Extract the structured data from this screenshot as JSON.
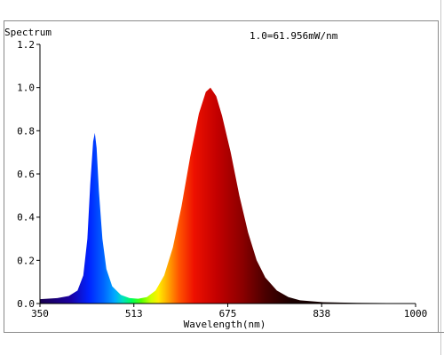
{
  "chart_data": {
    "type": "area",
    "title": "Spectrum",
    "annotation": "1.0=61.956mW/nm",
    "xlabel": "Wavelength(nm)",
    "ylabel": "",
    "xlim": [
      350,
      1000
    ],
    "ylim": [
      0,
      1.2
    ],
    "xticks": [
      "350",
      "513",
      "675",
      "838",
      "1000"
    ],
    "yticks": [
      "0.0",
      "0.2",
      "0.4",
      "0.6",
      "0.8",
      "1.0",
      "1.2"
    ],
    "grid": false,
    "series": [
      {
        "values": [
          [
            350,
            0.02
          ],
          [
            380,
            0.025
          ],
          [
            400,
            0.035
          ],
          [
            415,
            0.06
          ],
          [
            425,
            0.13
          ],
          [
            432,
            0.3
          ],
          [
            437,
            0.55
          ],
          [
            442,
            0.75
          ],
          [
            445,
            0.79
          ],
          [
            448,
            0.72
          ],
          [
            452,
            0.52
          ],
          [
            458,
            0.3
          ],
          [
            465,
            0.16
          ],
          [
            475,
            0.08
          ],
          [
            490,
            0.04
          ],
          [
            505,
            0.025
          ],
          [
            520,
            0.022
          ],
          [
            535,
            0.03
          ],
          [
            550,
            0.06
          ],
          [
            565,
            0.13
          ],
          [
            580,
            0.26
          ],
          [
            595,
            0.45
          ],
          [
            610,
            0.68
          ],
          [
            625,
            0.88
          ],
          [
            637,
            0.98
          ],
          [
            645,
            1.0
          ],
          [
            655,
            0.96
          ],
          [
            665,
            0.87
          ],
          [
            680,
            0.7
          ],
          [
            695,
            0.5
          ],
          [
            710,
            0.33
          ],
          [
            725,
            0.2
          ],
          [
            740,
            0.12
          ],
          [
            760,
            0.06
          ],
          [
            780,
            0.03
          ],
          [
            800,
            0.015
          ],
          [
            840,
            0.006
          ],
          [
            900,
            0.003
          ],
          [
            950,
            0.002
          ],
          [
            1000,
            0.001
          ]
        ]
      }
    ]
  }
}
